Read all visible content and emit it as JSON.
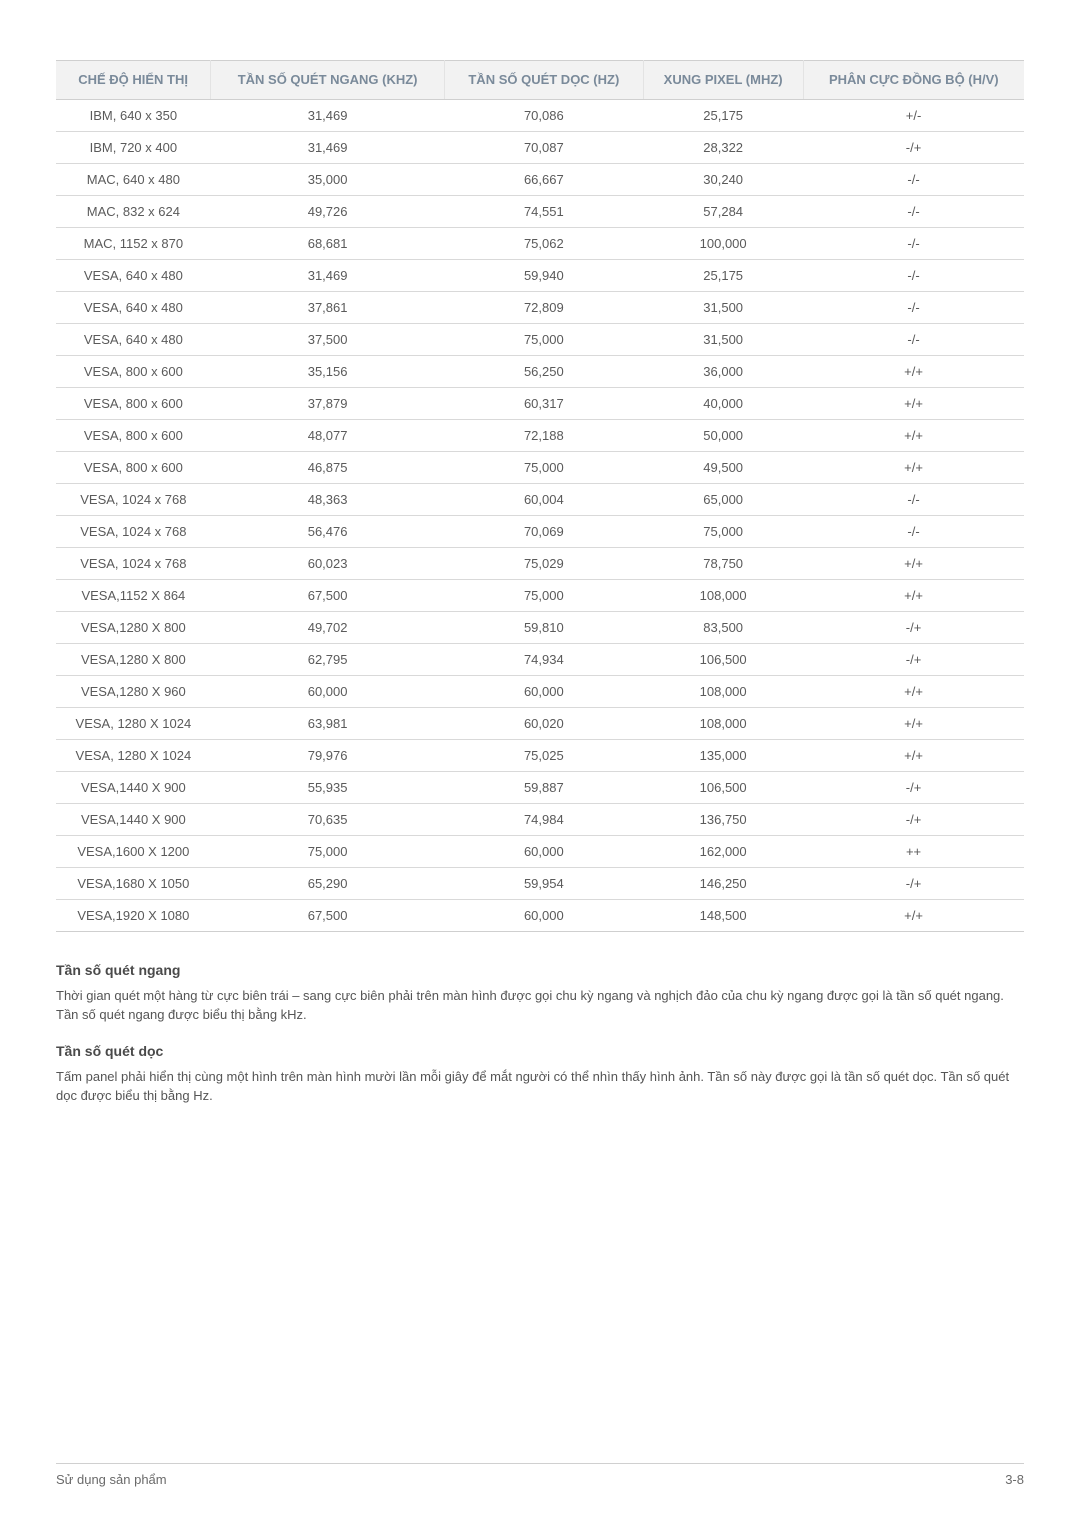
{
  "table": {
    "columns": [
      "CHẾ ĐỘ HIỂN THỊ",
      "TẦN SỐ QUÉT NGANG (KHZ)",
      "TẦN SỐ QUÉT DỌC (HZ)",
      "XUNG PIXEL (MHZ)",
      "PHÂN CỰC ĐỒNG BỘ (H/V)"
    ],
    "column_widths": [
      "20%",
      "20%",
      "20%",
      "20%",
      "20%"
    ],
    "header_bg": "#f2f2f2",
    "header_color": "#7a8a9a",
    "border_color": "#cfcfcf",
    "row_border_color": "#d9d9d9",
    "cell_fontsize": 13,
    "rows": [
      [
        "IBM, 640 x 350",
        "31,469",
        "70,086",
        "25,175",
        "+/-"
      ],
      [
        "IBM, 720 x 400",
        "31,469",
        "70,087",
        "28,322",
        "-/+"
      ],
      [
        "MAC, 640 x 480",
        "35,000",
        "66,667",
        "30,240",
        "-/-"
      ],
      [
        "MAC, 832 x 624",
        "49,726",
        "74,551",
        "57,284",
        "-/-"
      ],
      [
        "MAC, 1152 x 870",
        "68,681",
        "75,062",
        "100,000",
        "-/-"
      ],
      [
        "VESA, 640 x 480",
        "31,469",
        "59,940",
        "25,175",
        "-/-"
      ],
      [
        "VESA, 640 x 480",
        "37,861",
        "72,809",
        "31,500",
        "-/-"
      ],
      [
        "VESA, 640 x 480",
        "37,500",
        "75,000",
        "31,500",
        "-/-"
      ],
      [
        "VESA, 800 x 600",
        "35,156",
        "56,250",
        "36,000",
        "+/+"
      ],
      [
        "VESA, 800 x 600",
        "37,879",
        "60,317",
        "40,000",
        "+/+"
      ],
      [
        "VESA, 800 x 600",
        "48,077",
        "72,188",
        "50,000",
        "+/+"
      ],
      [
        "VESA, 800 x 600",
        "46,875",
        "75,000",
        "49,500",
        "+/+"
      ],
      [
        "VESA, 1024 x 768",
        "48,363",
        "60,004",
        "65,000",
        "-/-"
      ],
      [
        "VESA, 1024 x 768",
        "56,476",
        "70,069",
        "75,000",
        "-/-"
      ],
      [
        "VESA, 1024 x 768",
        "60,023",
        "75,029",
        "78,750",
        "+/+"
      ],
      [
        "VESA,1152 X 864",
        "67,500",
        "75,000",
        "108,000",
        "+/+"
      ],
      [
        "VESA,1280 X 800",
        "49,702",
        "59,810",
        "83,500",
        "-/+"
      ],
      [
        "VESA,1280 X 800",
        "62,795",
        "74,934",
        "106,500",
        "-/+"
      ],
      [
        "VESA,1280 X 960",
        "60,000",
        "60,000",
        "108,000",
        "+/+"
      ],
      [
        "VESA, 1280 X 1024",
        "63,981",
        "60,020",
        "108,000",
        "+/+"
      ],
      [
        "VESA, 1280 X 1024",
        "79,976",
        "75,025",
        "135,000",
        "+/+"
      ],
      [
        "VESA,1440 X 900",
        "55,935",
        "59,887",
        "106,500",
        "-/+"
      ],
      [
        "VESA,1440 X 900",
        "70,635",
        "74,984",
        "136,750",
        "-/+"
      ],
      [
        "VESA,1600 X 1200",
        "75,000",
        "60,000",
        "162,000",
        "++"
      ],
      [
        "VESA,1680 X 1050",
        "65,290",
        "59,954",
        "146,250",
        "-/+"
      ],
      [
        "VESA,1920 X 1080",
        "67,500",
        "60,000",
        "148,500",
        "+/+"
      ]
    ]
  },
  "sections": [
    {
      "title": "Tần số quét ngang",
      "body": "Thời gian quét một hàng từ cực biên trái – sang cực biên phải trên màn hình được gọi chu kỳ ngang và nghịch đảo của chu kỳ ngang được gọi là tần số quét ngang. Tần số quét ngang được biểu thị bằng kHz."
    },
    {
      "title": "Tần số quét dọc",
      "body": "Tấm panel phải hiển thị cùng một hình trên màn hình mười lần mỗi giây để mắt người có thể nhìn thấy hình ảnh. Tần số này được gọi là tần số quét dọc. Tần số quét dọc được biểu thị bằng Hz."
    }
  ],
  "footer": {
    "left": "Sử dụng sản phẩm",
    "right": "3-8"
  }
}
